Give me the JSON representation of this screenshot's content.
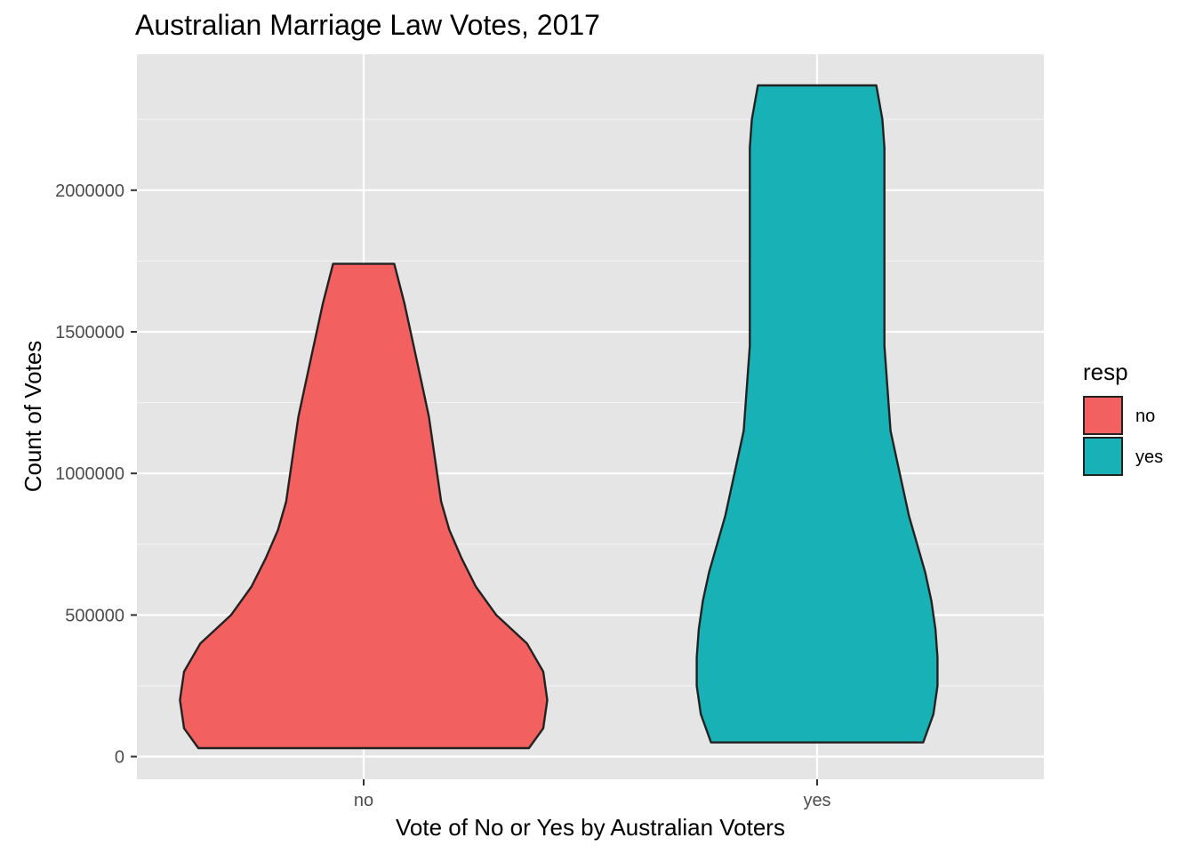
{
  "chart_data": {
    "type": "violin",
    "title": "Australian Marriage Law Votes, 2017",
    "xlabel": "Vote of No or Yes by Australian Voters",
    "ylabel": "Count of Votes",
    "categories": [
      "no",
      "yes"
    ],
    "ylim": [
      -80000,
      2480000
    ],
    "yticks": [
      0,
      500000,
      1000000,
      1500000,
      2000000
    ],
    "ytick_labels": [
      "0",
      "500000",
      "1000000",
      "1500000",
      "2000000"
    ],
    "grid": true,
    "background": "#e5e5e5",
    "legend": {
      "title": "resp",
      "position": "right",
      "entries": [
        "no",
        "yes"
      ]
    },
    "series": [
      {
        "name": "no",
        "color": "#f26060",
        "min": 30000,
        "max": 1740000,
        "density_profile": [
          [
            30000,
            0.81
          ],
          [
            100000,
            0.88
          ],
          [
            200000,
            0.9
          ],
          [
            300000,
            0.88
          ],
          [
            400000,
            0.8
          ],
          [
            500000,
            0.65
          ],
          [
            600000,
            0.55
          ],
          [
            700000,
            0.48
          ],
          [
            800000,
            0.42
          ],
          [
            900000,
            0.38
          ],
          [
            1000000,
            0.36
          ],
          [
            1100000,
            0.34
          ],
          [
            1200000,
            0.32
          ],
          [
            1300000,
            0.29
          ],
          [
            1400000,
            0.26
          ],
          [
            1500000,
            0.23
          ],
          [
            1600000,
            0.2
          ],
          [
            1740000,
            0.15
          ]
        ]
      },
      {
        "name": "yes",
        "color": "#18b2b6",
        "min": 50000,
        "max": 2370000,
        "density_profile": [
          [
            50000,
            0.52
          ],
          [
            150000,
            0.57
          ],
          [
            250000,
            0.59
          ],
          [
            350000,
            0.59
          ],
          [
            450000,
            0.58
          ],
          [
            550000,
            0.56
          ],
          [
            650000,
            0.53
          ],
          [
            750000,
            0.49
          ],
          [
            850000,
            0.45
          ],
          [
            950000,
            0.42
          ],
          [
            1050000,
            0.39
          ],
          [
            1150000,
            0.36
          ],
          [
            1250000,
            0.35
          ],
          [
            1350000,
            0.34
          ],
          [
            1450000,
            0.33
          ],
          [
            1550000,
            0.33
          ],
          [
            1650000,
            0.33
          ],
          [
            1750000,
            0.33
          ],
          [
            1850000,
            0.33
          ],
          [
            1950000,
            0.33
          ],
          [
            2050000,
            0.33
          ],
          [
            2150000,
            0.33
          ],
          [
            2250000,
            0.32
          ],
          [
            2370000,
            0.29
          ]
        ]
      }
    ]
  }
}
